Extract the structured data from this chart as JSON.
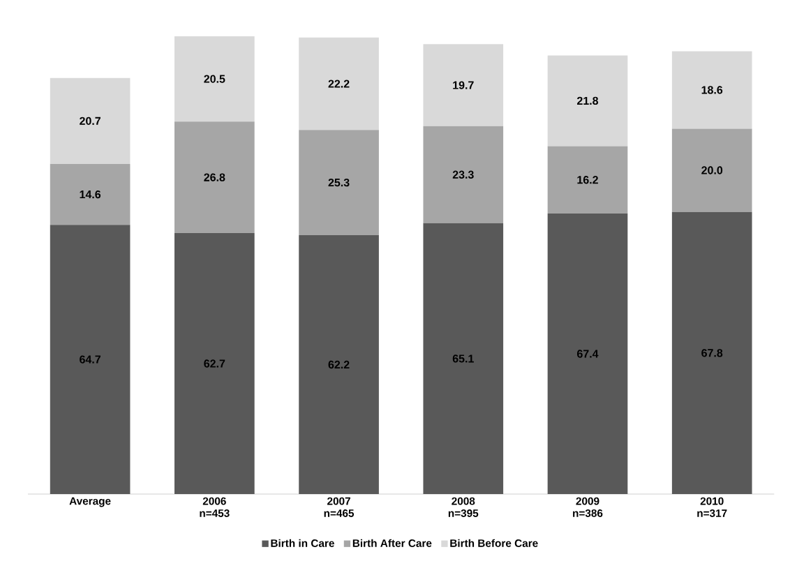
{
  "chart_data": {
    "type": "bar",
    "stacked": true,
    "legend": "bottom",
    "categories": [
      "Average",
      "2006 n=453",
      "2007 n=465",
      "2008 n=395",
      "2009 n=386",
      "2010 n=317"
    ],
    "series": [
      {
        "name": "Birth in Care",
        "color": "#595959",
        "values": [
          64.7,
          62.7,
          62.2,
          65.1,
          67.4,
          67.8
        ],
        "value_labels": [
          "64.7",
          "62.7",
          "62.2",
          "65.1",
          "67.4",
          "67.8"
        ]
      },
      {
        "name": "Birth After Care",
        "color": "#a6a6a6",
        "values": [
          14.6,
          26.8,
          25.3,
          23.3,
          16.2,
          20.0
        ],
        "value_labels": [
          "14.6",
          "26.8",
          "25.3",
          "23.3",
          "16.2",
          "20.0"
        ]
      },
      {
        "name": "Birth Before Care",
        "color": "#d9d9d9",
        "values": [
          20.7,
          20.5,
          22.2,
          19.7,
          21.8,
          18.6
        ],
        "value_labels": [
          "20.7",
          "20.5",
          "22.2",
          "19.7",
          "21.8",
          "18.6"
        ]
      }
    ]
  }
}
